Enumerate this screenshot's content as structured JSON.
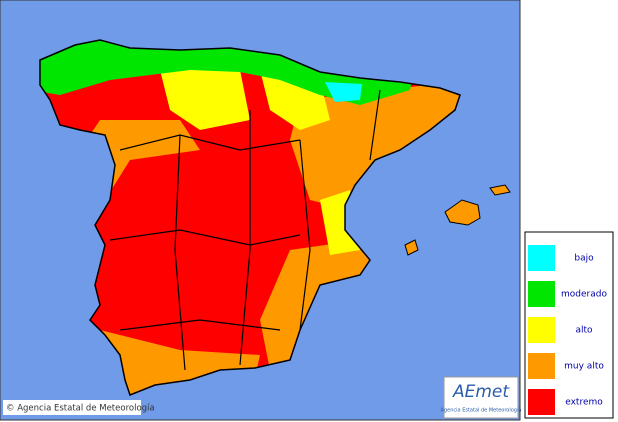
{
  "legend": {
    "items": [
      {
        "label": "bajo",
        "color": "#00ffff"
      },
      {
        "label": "moderado",
        "color": "#00e600"
      },
      {
        "label": "alto",
        "color": "#ffff00"
      },
      {
        "label": "muy alto",
        "color": "#ff9900"
      },
      {
        "label": "extremo",
        "color": "#ff0000"
      }
    ]
  },
  "credit": "© Agencia Estatal de Meteorología",
  "logo": {
    "name": "AEmet",
    "subtitle": "Agencia Estatal de Meteorología"
  }
}
